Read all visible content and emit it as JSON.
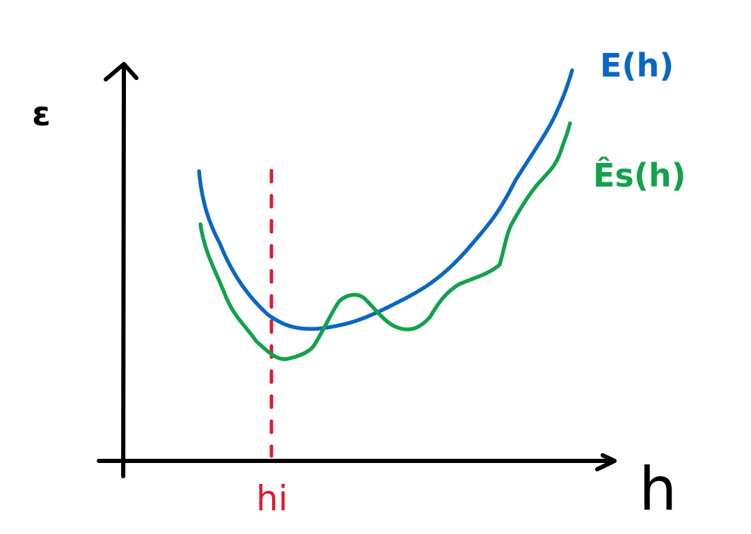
{
  "labels": {
    "y_axis": "ε",
    "x_axis": "h",
    "curve_true": "E(h)",
    "curve_empirical": "Ês(h)",
    "marker": "hi"
  },
  "colors": {
    "axes": "#000000",
    "curve_true": "#0a67c4",
    "curve_empirical": "#13a24b",
    "marker": "#e01b2e"
  },
  "icons": {
    "y_arrow": "arrow-up",
    "x_arrow": "arrow-right"
  }
}
